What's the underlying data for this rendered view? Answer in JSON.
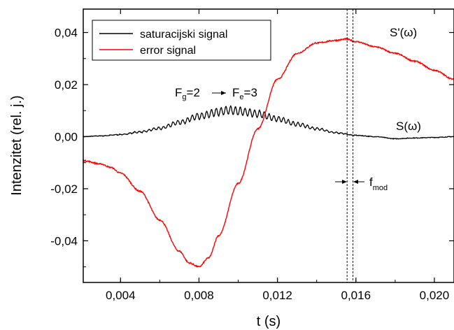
{
  "chart_data": {
    "type": "line",
    "xlabel": "t (s)",
    "ylabel": "Intenzitet (rel. j.)",
    "xlim": [
      0.0021,
      0.021
    ],
    "ylim": [
      -0.056,
      0.049
    ],
    "xticks": [
      0.004,
      0.008,
      0.012,
      0.016,
      0.02
    ],
    "xtick_labels": [
      "0,004",
      "0,008",
      "0,012",
      "0,016",
      "0,020"
    ],
    "yticks": [
      -0.04,
      -0.02,
      0.0,
      0.02,
      0.04
    ],
    "ytick_labels": [
      "-0,04",
      "-0,02",
      "0,00",
      "0,02",
      "0,04"
    ],
    "grid": false,
    "legend_position": "top-left",
    "series": [
      {
        "name": "saturacijski signal",
        "color": "#000000",
        "x": [
          0.0021,
          0.003,
          0.004,
          0.005,
          0.006,
          0.007,
          0.008,
          0.009,
          0.0095,
          0.01,
          0.011,
          0.012,
          0.013,
          0.014,
          0.015,
          0.016,
          0.017,
          0.018,
          0.019,
          0.02,
          0.021
        ],
        "values": [
          0.0,
          0.0003,
          0.0008,
          0.0018,
          0.0032,
          0.0055,
          0.0078,
          0.0095,
          0.0102,
          0.0098,
          0.0088,
          0.0068,
          0.0048,
          0.003,
          0.0015,
          0.0005,
          0.0,
          -0.0008,
          -0.0005,
          -0.0003,
          0.0
        ]
      },
      {
        "name": "error signal",
        "color": "#ff0000",
        "x": [
          0.0021,
          0.003,
          0.0035,
          0.004,
          0.005,
          0.006,
          0.007,
          0.0075,
          0.008,
          0.0085,
          0.009,
          0.01,
          0.011,
          0.012,
          0.013,
          0.014,
          0.015,
          0.0155,
          0.016,
          0.017,
          0.018,
          0.019,
          0.02,
          0.021
        ],
        "values": [
          -0.0092,
          -0.0105,
          -0.0118,
          -0.014,
          -0.021,
          -0.032,
          -0.044,
          -0.0485,
          -0.05,
          -0.0465,
          -0.038,
          -0.018,
          0.003,
          0.022,
          0.032,
          0.036,
          0.037,
          0.0375,
          0.0365,
          0.0345,
          0.032,
          0.029,
          0.0255,
          0.022
        ]
      }
    ],
    "annotations": {
      "fg_main": "F",
      "fg_sub": "g",
      "fg_val": "=2",
      "fe_main": "F",
      "fe_sub": "e",
      "fe_val": "=3",
      "s_prime_label": "S'(ω)",
      "s_label": "S(ω)",
      "fmod_main": "f",
      "fmod_sub": "mod"
    },
    "marker_lines_x": [
      0.01555,
      0.01585
    ]
  }
}
